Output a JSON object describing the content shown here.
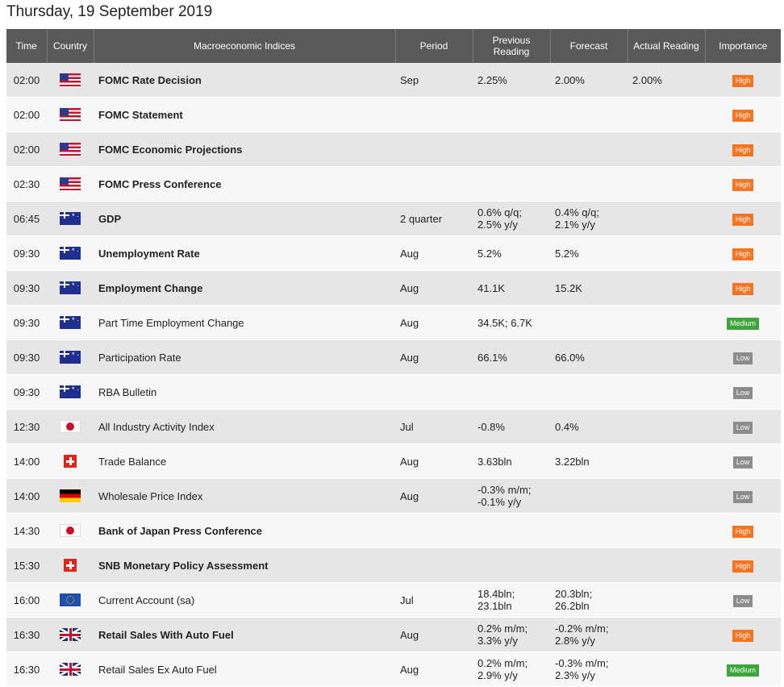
{
  "page": {
    "title": "Thursday, 19 September 2019"
  },
  "headers": {
    "time": "Time",
    "country": "Country",
    "indices": "Macroeconomic Indices",
    "period": "Period",
    "previous": "Previous Reading",
    "forecast": "Forecast",
    "actual": "Actual Reading",
    "importance": "Importance"
  },
  "rows": [
    {
      "time": "02:00",
      "flag": "us",
      "flag_icon": "us-flag-icon",
      "name": "FOMC Rate Decision",
      "bold": true,
      "period": "Sep",
      "previous": "2.25%",
      "forecast": "2.00%",
      "actual": "2.00%",
      "importance": "High"
    },
    {
      "time": "02:00",
      "flag": "us",
      "flag_icon": "us-flag-icon",
      "name": "FOMC Statement",
      "bold": true,
      "period": "",
      "previous": "",
      "forecast": "",
      "actual": "",
      "importance": "High"
    },
    {
      "time": "02:00",
      "flag": "us",
      "flag_icon": "us-flag-icon",
      "name": "FOMC Economic Projections",
      "bold": true,
      "period": "",
      "previous": "",
      "forecast": "",
      "actual": "",
      "importance": "High"
    },
    {
      "time": "02:30",
      "flag": "us",
      "flag_icon": "us-flag-icon",
      "name": "FOMC Press Conference",
      "bold": true,
      "period": "",
      "previous": "",
      "forecast": "",
      "actual": "",
      "importance": "High"
    },
    {
      "time": "06:45",
      "flag": "au",
      "flag_icon": "au-flag-icon",
      "name": "GDP",
      "bold": true,
      "period": "2 quarter",
      "previous": "0.6% q/q;\n2.5% y/y",
      "forecast": "0.4% q/q;\n2.1% y/y",
      "actual": "",
      "importance": "High"
    },
    {
      "time": "09:30",
      "flag": "au",
      "flag_icon": "au-flag-icon",
      "name": "Unemployment Rate",
      "bold": true,
      "period": "Aug",
      "previous": "5.2%",
      "forecast": "5.2%",
      "actual": "",
      "importance": "High"
    },
    {
      "time": "09:30",
      "flag": "au",
      "flag_icon": "au-flag-icon",
      "name": "Employment Change",
      "bold": true,
      "period": "Aug",
      "previous": "41.1K",
      "forecast": "15.2K",
      "actual": "",
      "importance": "High"
    },
    {
      "time": "09:30",
      "flag": "au",
      "flag_icon": "au-flag-icon",
      "name": "Part Time Employment Change",
      "bold": false,
      "period": "Aug",
      "previous": "34.5K; 6.7K",
      "forecast": "",
      "actual": "",
      "importance": "Medium"
    },
    {
      "time": "09:30",
      "flag": "au",
      "flag_icon": "au-flag-icon",
      "name": "Participation Rate",
      "bold": false,
      "period": "Aug",
      "previous": "66.1%",
      "forecast": "66.0%",
      "actual": "",
      "importance": "Low"
    },
    {
      "time": "09:30",
      "flag": "au",
      "flag_icon": "au-flag-icon",
      "name": "RBA Bulletin",
      "bold": false,
      "period": "",
      "previous": "",
      "forecast": "",
      "actual": "",
      "importance": "Low"
    },
    {
      "time": "12:30",
      "flag": "jp",
      "flag_icon": "jp-flag-icon",
      "name": "All Industry Activity Index",
      "bold": false,
      "period": "Jul",
      "previous": "-0.8%",
      "forecast": "0.4%",
      "actual": "",
      "importance": "Low"
    },
    {
      "time": "14:00",
      "flag": "ch",
      "flag_icon": "ch-flag-icon",
      "name": "Trade Balance",
      "bold": false,
      "period": "Aug",
      "previous": "3.63bln",
      "forecast": "3.22bln",
      "actual": "",
      "importance": "Low"
    },
    {
      "time": "14:00",
      "flag": "de",
      "flag_icon": "de-flag-icon",
      "name": "Wholesale Price Index",
      "bold": false,
      "period": "Aug",
      "previous": "-0.3% m/m;\n-0.1% y/y",
      "forecast": "",
      "actual": "",
      "importance": "Low"
    },
    {
      "time": "14:30",
      "flag": "jp",
      "flag_icon": "jp-flag-icon",
      "name": "Bank of Japan Press Conference",
      "bold": true,
      "period": "",
      "previous": "",
      "forecast": "",
      "actual": "",
      "importance": "High"
    },
    {
      "time": "15:30",
      "flag": "ch",
      "flag_icon": "ch-flag-icon",
      "name": "SNB Monetary Policy Assessment",
      "bold": true,
      "period": "",
      "previous": "",
      "forecast": "",
      "actual": "",
      "importance": "High"
    },
    {
      "time": "16:00",
      "flag": "eu",
      "flag_icon": "eu-flag-icon",
      "name": "Current Account (sa)",
      "bold": false,
      "period": "Jul",
      "previous": "18.4bln;\n23.1bln",
      "forecast": "20.3bln;\n26.2bln",
      "actual": "",
      "importance": "Low"
    },
    {
      "time": "16:30",
      "flag": "uk",
      "flag_icon": "uk-flag-icon",
      "name": "Retail Sales With Auto Fuel",
      "bold": true,
      "period": "Aug",
      "previous": "0.2% m/m;\n3.3% y/y",
      "forecast": "-0.2% m/m;\n2.8% y/y",
      "actual": "",
      "importance": "High"
    },
    {
      "time": "16:30",
      "flag": "uk",
      "flag_icon": "uk-flag-icon",
      "name": "Retail Sales Ex Auto Fuel",
      "bold": false,
      "period": "Aug",
      "previous": "0.2% m/m;\n2.9% y/y",
      "forecast": "-0.3% m/m;\n2.3% y/y",
      "actual": "",
      "importance": "Medium"
    }
  ],
  "colors": {
    "high": "#f7731f",
    "medium": "#3ca63c",
    "low": "#8c8c8c",
    "header_bg": "#595959"
  }
}
